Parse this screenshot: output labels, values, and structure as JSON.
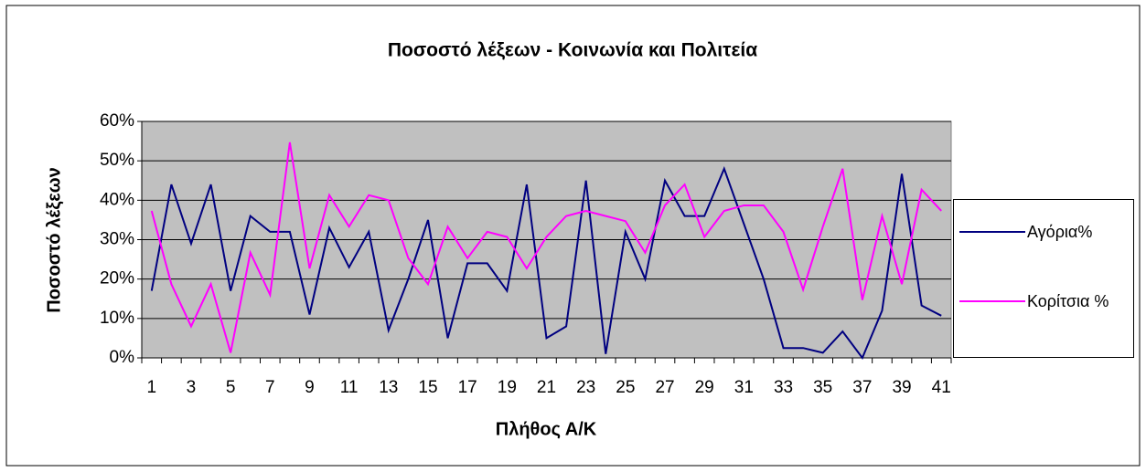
{
  "chart_data": {
    "type": "line",
    "title": "Ποσοστό λέξεων - Κοινωνία και Πολιτεία",
    "x_label": "Πλήθος Α/Κ",
    "y_label": "Ποσοστό λέξεων",
    "categories": [
      "1",
      null,
      "3",
      null,
      "5",
      null,
      "7",
      null,
      "9",
      null,
      "11",
      null,
      "13",
      null,
      "15",
      null,
      "17",
      null,
      "19",
      null,
      "21",
      null,
      "23",
      null,
      "25",
      null,
      "27",
      null,
      "29",
      null,
      "31",
      null,
      "33",
      null,
      "35",
      null,
      "37",
      null,
      "39",
      null,
      "41"
    ],
    "series": [
      {
        "name": "Αγόρια%",
        "color": "#000080",
        "values": [
          17,
          44,
          29,
          44,
          17,
          36,
          32,
          32,
          11,
          33,
          23,
          32,
          7,
          20,
          35,
          5,
          24,
          24,
          17,
          44,
          5,
          8,
          45,
          1,
          32,
          20,
          45,
          36,
          36,
          48,
          34,
          20,
          2.5,
          2.5,
          1.3,
          6.7,
          0,
          12,
          46.7,
          13.3,
          10.7
        ]
      },
      {
        "name": "Κορίτσια %",
        "color": "#ff00ff",
        "values": [
          37.3,
          18.7,
          8,
          18.7,
          1.3,
          26.7,
          16,
          54.7,
          22.7,
          41.3,
          33.3,
          41.3,
          40,
          25.3,
          18.7,
          33.3,
          25.3,
          32,
          30.7,
          22.7,
          30.7,
          36,
          37.3,
          36,
          34.7,
          26.7,
          38.7,
          44,
          30.7,
          37.3,
          38.7,
          38.7,
          32,
          17.3,
          33.3,
          48,
          14.7,
          36,
          18.7,
          42.7,
          37.3
        ]
      }
    ],
    "ylim": [
      0,
      60
    ],
    "yticks": [
      {
        "value": 0,
        "label": "0%"
      },
      {
        "value": 10,
        "label": "10%"
      },
      {
        "value": 20,
        "label": "20%"
      },
      {
        "value": 30,
        "label": "30%"
      },
      {
        "value": 40,
        "label": "40%"
      },
      {
        "value": 50,
        "label": "50%"
      },
      {
        "value": 60,
        "label": "60%"
      }
    ],
    "grid": true,
    "legend": "right",
    "plot_background": "#c0c0c0"
  }
}
